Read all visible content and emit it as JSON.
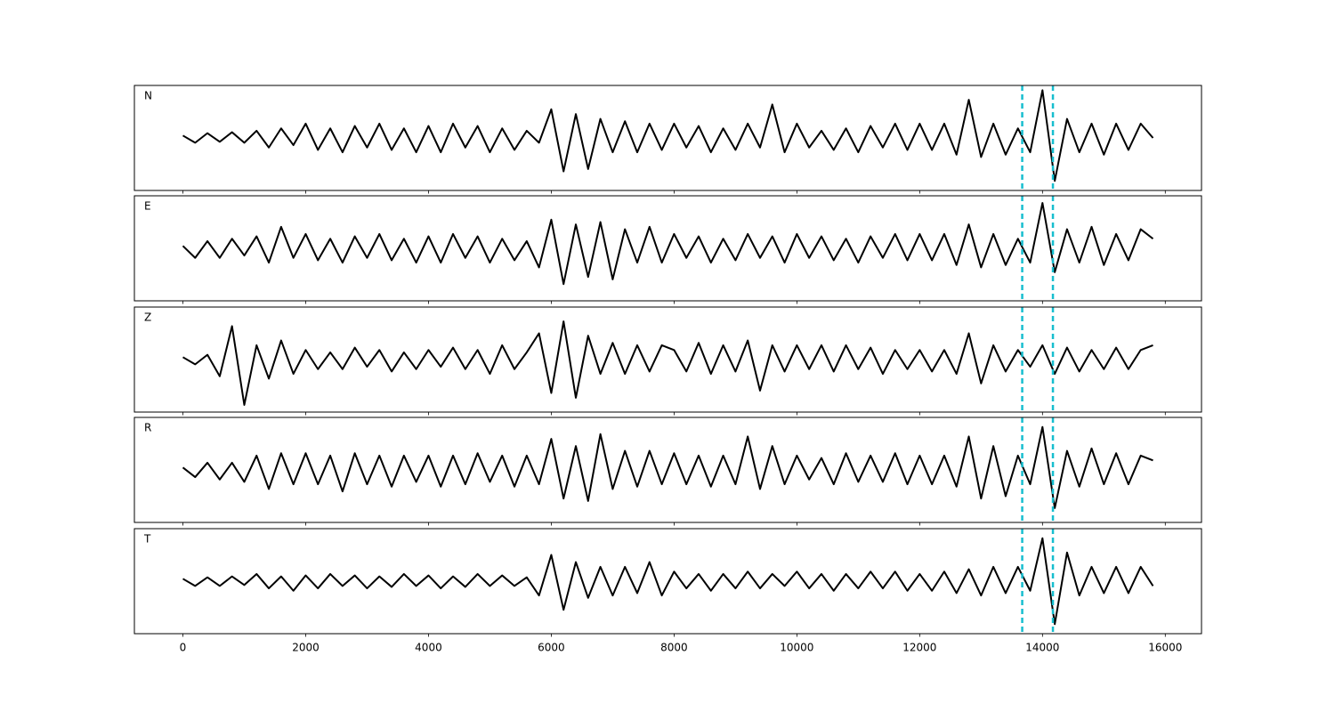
{
  "chart_data": [
    {
      "type": "line",
      "label": "N",
      "color": "#000000",
      "vlines": [
        13670,
        14170
      ],
      "vline_color": "#17becf",
      "xlim": [
        -790,
        16590
      ],
      "ylim": [
        -1.1,
        1.1
      ],
      "xticks": [
        0,
        2000,
        4000,
        6000,
        8000,
        10000,
        12000,
        14000,
        16000
      ],
      "xtick_labels": false,
      "x": [
        0,
        200,
        400,
        600,
        800,
        1000,
        1200,
        1400,
        1600,
        1800,
        2000,
        2200,
        2400,
        2600,
        2800,
        3000,
        3200,
        3400,
        3600,
        3800,
        4000,
        4200,
        4400,
        4600,
        4800,
        5000,
        5200,
        5400,
        5600,
        5800,
        6000,
        6200,
        6400,
        6600,
        6800,
        7000,
        7200,
        7400,
        7600,
        7800,
        8000,
        8200,
        8400,
        8600,
        8800,
        9000,
        9200,
        9400,
        9600,
        9800,
        10000,
        10200,
        10400,
        10600,
        10800,
        11000,
        11200,
        11400,
        11600,
        11800,
        12000,
        12200,
        12400,
        12600,
        12800,
        13000,
        13200,
        13400,
        13600,
        13800,
        14000,
        14200,
        14400,
        14600,
        14800,
        15000,
        15200,
        15400,
        15600,
        15800
      ],
      "values": [
        0.05,
        -0.1,
        0.1,
        -0.08,
        0.12,
        -0.1,
        0.15,
        -0.2,
        0.2,
        -0.15,
        0.3,
        -0.25,
        0.2,
        -0.3,
        0.25,
        -0.2,
        0.3,
        -0.25,
        0.2,
        -0.3,
        0.25,
        -0.3,
        0.3,
        -0.2,
        0.25,
        -0.3,
        0.2,
        -0.25,
        0.15,
        -0.1,
        0.6,
        -0.7,
        0.5,
        -0.65,
        0.4,
        -0.3,
        0.35,
        -0.3,
        0.3,
        -0.25,
        0.3,
        -0.2,
        0.25,
        -0.3,
        0.2,
        -0.25,
        0.3,
        -0.2,
        0.7,
        -0.3,
        0.3,
        -0.2,
        0.15,
        -0.25,
        0.2,
        -0.3,
        0.25,
        -0.2,
        0.3,
        -0.25,
        0.3,
        -0.25,
        0.3,
        -0.35,
        0.8,
        -0.4,
        0.3,
        -0.35,
        0.2,
        -0.3,
        1.0,
        -0.9,
        0.4,
        -0.3,
        0.3,
        -0.35,
        0.3,
        -0.25,
        0.3,
        0.0
      ]
    },
    {
      "type": "line",
      "label": "E",
      "color": "#000000",
      "vlines": [
        13670,
        14170
      ],
      "vline_color": "#17becf",
      "xlim": [
        -790,
        16590
      ],
      "ylim": [
        -1.1,
        1.1
      ],
      "xticks": [
        0,
        2000,
        4000,
        6000,
        8000,
        10000,
        12000,
        14000,
        16000
      ],
      "xtick_labels": false,
      "x": [
        0,
        200,
        400,
        600,
        800,
        1000,
        1200,
        1400,
        1600,
        1800,
        2000,
        2200,
        2400,
        2600,
        2800,
        3000,
        3200,
        3400,
        3600,
        3800,
        4000,
        4200,
        4400,
        4600,
        4800,
        5000,
        5200,
        5400,
        5600,
        5800,
        6000,
        6200,
        6400,
        6600,
        6800,
        7000,
        7200,
        7400,
        7600,
        7800,
        8000,
        8200,
        8400,
        8600,
        8800,
        9000,
        9200,
        9400,
        9600,
        9800,
        10000,
        10200,
        10400,
        10600,
        10800,
        11000,
        11200,
        11400,
        11600,
        11800,
        12000,
        12200,
        12400,
        12600,
        12800,
        13000,
        13200,
        13400,
        13600,
        13800,
        14000,
        14200,
        14400,
        14600,
        14800,
        15000,
        15200,
        15400,
        15600,
        15800
      ],
      "values": [
        0.05,
        -0.2,
        0.15,
        -0.2,
        0.2,
        -0.15,
        0.25,
        -0.3,
        0.45,
        -0.2,
        0.3,
        -0.25,
        0.2,
        -0.3,
        0.25,
        -0.2,
        0.3,
        -0.25,
        0.2,
        -0.3,
        0.25,
        -0.3,
        0.3,
        -0.2,
        0.25,
        -0.3,
        0.2,
        -0.25,
        0.15,
        -0.4,
        0.6,
        -0.75,
        0.5,
        -0.6,
        0.55,
        -0.65,
        0.4,
        -0.3,
        0.45,
        -0.3,
        0.3,
        -0.2,
        0.25,
        -0.3,
        0.2,
        -0.25,
        0.3,
        -0.2,
        0.25,
        -0.3,
        0.3,
        -0.2,
        0.25,
        -0.25,
        0.2,
        -0.3,
        0.25,
        -0.2,
        0.3,
        -0.25,
        0.3,
        -0.25,
        0.3,
        -0.35,
        0.5,
        -0.4,
        0.3,
        -0.35,
        0.2,
        -0.3,
        0.95,
        -0.5,
        0.4,
        -0.3,
        0.45,
        -0.35,
        0.3,
        -0.25,
        0.4,
        0.2
      ]
    },
    {
      "type": "line",
      "label": "Z",
      "color": "#000000",
      "vlines": [
        13670,
        14170
      ],
      "vline_color": "#17becf",
      "xlim": [
        -790,
        16590
      ],
      "ylim": [
        -1.1,
        1.1
      ],
      "xticks": [
        0,
        2000,
        4000,
        6000,
        8000,
        10000,
        12000,
        14000,
        16000
      ],
      "xtick_labels": false,
      "x": [
        0,
        200,
        400,
        600,
        800,
        1000,
        1200,
        1400,
        1600,
        1800,
        2000,
        2200,
        2400,
        2600,
        2800,
        3000,
        3200,
        3400,
        3600,
        3800,
        4000,
        4200,
        4400,
        4600,
        4800,
        5000,
        5200,
        5400,
        5600,
        5800,
        6000,
        6200,
        6400,
        6600,
        6800,
        7000,
        7200,
        7400,
        7600,
        7800,
        8000,
        8200,
        8400,
        8600,
        8800,
        9000,
        9200,
        9400,
        9600,
        9800,
        10000,
        10200,
        10400,
        10600,
        10800,
        11000,
        11200,
        11400,
        11600,
        11800,
        12000,
        12200,
        12400,
        12600,
        12800,
        13000,
        13200,
        13400,
        13600,
        13800,
        14000,
        14200,
        14400,
        14600,
        14800,
        15000,
        15200,
        15400,
        15600,
        15800
      ],
      "values": [
        0.05,
        -0.1,
        0.1,
        -0.35,
        0.7,
        -0.95,
        0.3,
        -0.4,
        0.4,
        -0.3,
        0.2,
        -0.2,
        0.15,
        -0.2,
        0.25,
        -0.15,
        0.2,
        -0.25,
        0.15,
        -0.2,
        0.2,
        -0.15,
        0.25,
        -0.2,
        0.2,
        -0.3,
        0.3,
        -0.2,
        0.15,
        0.55,
        -0.7,
        0.8,
        -0.8,
        0.5,
        -0.3,
        0.35,
        -0.3,
        0.3,
        -0.25,
        0.3,
        0.2,
        -0.25,
        0.35,
        -0.3,
        0.3,
        -0.25,
        0.4,
        -0.65,
        0.3,
        -0.25,
        0.3,
        -0.2,
        0.3,
        -0.25,
        0.3,
        -0.2,
        0.25,
        -0.3,
        0.2,
        -0.2,
        0.2,
        -0.25,
        0.2,
        -0.3,
        0.55,
        -0.5,
        0.3,
        -0.25,
        0.2,
        -0.15,
        0.3,
        -0.3,
        0.25,
        -0.25,
        0.2,
        -0.2,
        0.25,
        -0.2,
        0.2,
        0.3
      ]
    },
    {
      "type": "line",
      "label": "R",
      "color": "#000000",
      "vlines": [
        13670,
        14170
      ],
      "vline_color": "#17becf",
      "xlim": [
        -790,
        16590
      ],
      "ylim": [
        -1.1,
        1.1
      ],
      "xticks": [
        0,
        2000,
        4000,
        6000,
        8000,
        10000,
        12000,
        14000,
        16000
      ],
      "xtick_labels": false,
      "x": [
        0,
        200,
        400,
        600,
        800,
        1000,
        1200,
        1400,
        1600,
        1800,
        2000,
        2200,
        2400,
        2600,
        2800,
        3000,
        3200,
        3400,
        3600,
        3800,
        4000,
        4200,
        4400,
        4600,
        4800,
        5000,
        5200,
        5400,
        5600,
        5800,
        6000,
        6200,
        6400,
        6600,
        6800,
        7000,
        7200,
        7400,
        7600,
        7800,
        8000,
        8200,
        8400,
        8600,
        8800,
        9000,
        9200,
        9400,
        9600,
        9800,
        10000,
        10200,
        10400,
        10600,
        10800,
        11000,
        11200,
        11400,
        11600,
        11800,
        12000,
        12200,
        12400,
        12600,
        12800,
        13000,
        13200,
        13400,
        13600,
        13800,
        14000,
        14200,
        14400,
        14600,
        14800,
        15000,
        15200,
        15400,
        15600,
        15800
      ],
      "values": [
        0.05,
        -0.15,
        0.15,
        -0.2,
        0.15,
        -0.25,
        0.3,
        -0.4,
        0.35,
        -0.3,
        0.35,
        -0.3,
        0.3,
        -0.45,
        0.35,
        -0.3,
        0.3,
        -0.35,
        0.3,
        -0.25,
        0.3,
        -0.35,
        0.3,
        -0.3,
        0.35,
        -0.25,
        0.3,
        -0.35,
        0.3,
        -0.3,
        0.65,
        -0.6,
        0.5,
        -0.65,
        0.75,
        -0.4,
        0.4,
        -0.35,
        0.4,
        -0.3,
        0.35,
        -0.3,
        0.3,
        -0.35,
        0.3,
        -0.3,
        0.7,
        -0.4,
        0.5,
        -0.3,
        0.3,
        -0.2,
        0.25,
        -0.3,
        0.35,
        -0.25,
        0.3,
        -0.25,
        0.35,
        -0.3,
        0.3,
        -0.3,
        0.3,
        -0.35,
        0.7,
        -0.6,
        0.5,
        -0.55,
        0.3,
        -0.3,
        0.9,
        -0.8,
        0.4,
        -0.35,
        0.45,
        -0.3,
        0.35,
        -0.3,
        0.3,
        0.2
      ]
    },
    {
      "type": "line",
      "label": "T",
      "color": "#000000",
      "vlines": [
        13670,
        14170
      ],
      "vline_color": "#17becf",
      "xlim": [
        -790,
        16590
      ],
      "ylim": [
        -1.1,
        1.1
      ],
      "xticks": [
        0,
        2000,
        4000,
        6000,
        8000,
        10000,
        12000,
        14000,
        16000
      ],
      "xtick_labels": true,
      "x": [
        0,
        200,
        400,
        600,
        800,
        1000,
        1200,
        1400,
        1600,
        1800,
        2000,
        2200,
        2400,
        2600,
        2800,
        3000,
        3200,
        3400,
        3600,
        3800,
        4000,
        4200,
        4400,
        4600,
        4800,
        5000,
        5200,
        5400,
        5600,
        5800,
        6000,
        6200,
        6400,
        6600,
        6800,
        7000,
        7200,
        7400,
        7600,
        7800,
        8000,
        8200,
        8400,
        8600,
        8800,
        9000,
        9200,
        9400,
        9600,
        9800,
        10000,
        10200,
        10400,
        10600,
        10800,
        11000,
        11200,
        11400,
        11600,
        11800,
        12000,
        12200,
        12400,
        12600,
        12800,
        13000,
        13200,
        13400,
        13600,
        13800,
        14000,
        14200,
        14400,
        14600,
        14800,
        15000,
        15200,
        15400,
        15600,
        15800
      ],
      "values": [
        0.05,
        -0.1,
        0.08,
        -0.1,
        0.1,
        -0.08,
        0.15,
        -0.15,
        0.1,
        -0.2,
        0.12,
        -0.15,
        0.15,
        -0.1,
        0.12,
        -0.15,
        0.1,
        -0.12,
        0.15,
        -0.1,
        0.12,
        -0.15,
        0.1,
        -0.12,
        0.15,
        -0.1,
        0.12,
        -0.1,
        0.08,
        -0.3,
        0.55,
        -0.6,
        0.4,
        -0.35,
        0.3,
        -0.3,
        0.3,
        -0.25,
        0.4,
        -0.3,
        0.2,
        -0.15,
        0.15,
        -0.2,
        0.15,
        -0.15,
        0.2,
        -0.15,
        0.15,
        -0.1,
        0.2,
        -0.15,
        0.15,
        -0.2,
        0.15,
        -0.15,
        0.2,
        -0.15,
        0.2,
        -0.2,
        0.15,
        -0.2,
        0.2,
        -0.25,
        0.25,
        -0.3,
        0.3,
        -0.25,
        0.3,
        -0.2,
        0.9,
        -0.9,
        0.6,
        -0.3,
        0.3,
        -0.25,
        0.3,
        -0.25,
        0.3,
        -0.1
      ]
    }
  ]
}
